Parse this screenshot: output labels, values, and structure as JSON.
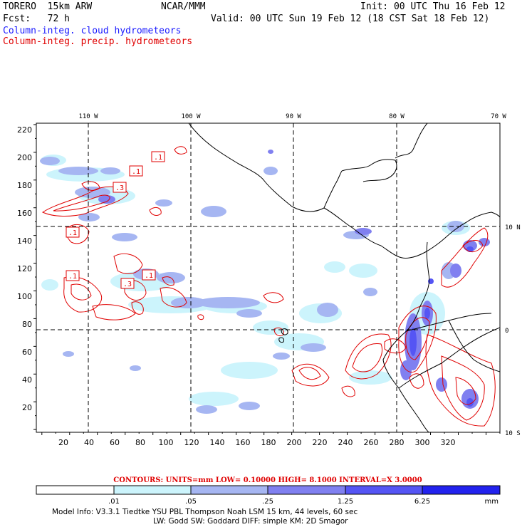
{
  "header": {
    "model": "TORERO  15km ARW",
    "org": "NCAR/MMM",
    "init": "Init: 00 UTC Thu 16 Feb 12",
    "fcst": "Fcst:   72 h",
    "valid": "Valid: 00 UTC Sun 19 Feb 12 (18 CST Sat 18 Feb 12)",
    "field1": "Column-integ. cloud hydrometeors",
    "field2": "Column-integ. precip. hydrometeors"
  },
  "colors": {
    "cloud_levels": [
      "#ffffff",
      "#ccf4fc",
      "#a6b6f2",
      "#8080f0",
      "#5555f4",
      "#2222ee"
    ],
    "precip_contour": "#e00000",
    "coast": "#000000"
  },
  "top_lon_labels": [
    "110 W",
    "100 W",
    "90 W",
    "80 W",
    "70 W"
  ],
  "right_lat_labels": [
    "10 N",
    "0",
    "10 S"
  ],
  "left_y_ticks": [
    "220",
    "200",
    "180",
    "160",
    "140",
    "120",
    "100",
    "80",
    "60",
    "40",
    "20"
  ],
  "bottom_x_ticks": [
    "20",
    "40",
    "60",
    "80",
    "100",
    "120",
    "140",
    "160",
    "180",
    "200",
    "220",
    "240",
    "260",
    "280",
    "300",
    "320"
  ],
  "contour_labels": [
    ".1",
    ".1",
    ".3",
    ".1",
    ".1",
    ".3",
    ".1"
  ],
  "contours_info": "CONTOURS:  UNITS=mm  LOW= 0.10000      HIGH=  8.1000      INTERVAL=X  3.0000",
  "colorbar": {
    "ticks": [
      ".01",
      ".05",
      ".25",
      "1.25",
      "6.25"
    ],
    "units": "mm"
  },
  "model_info_line1": "Model Info: V3.3.1    Tiedtke YSU PBL   Thompson     Noah LSM  15 km,    44 levels,    60 sec",
  "model_info_line2": "LW: Godd SW: Goddard DIFF: simple KM: 2D Smagor"
}
